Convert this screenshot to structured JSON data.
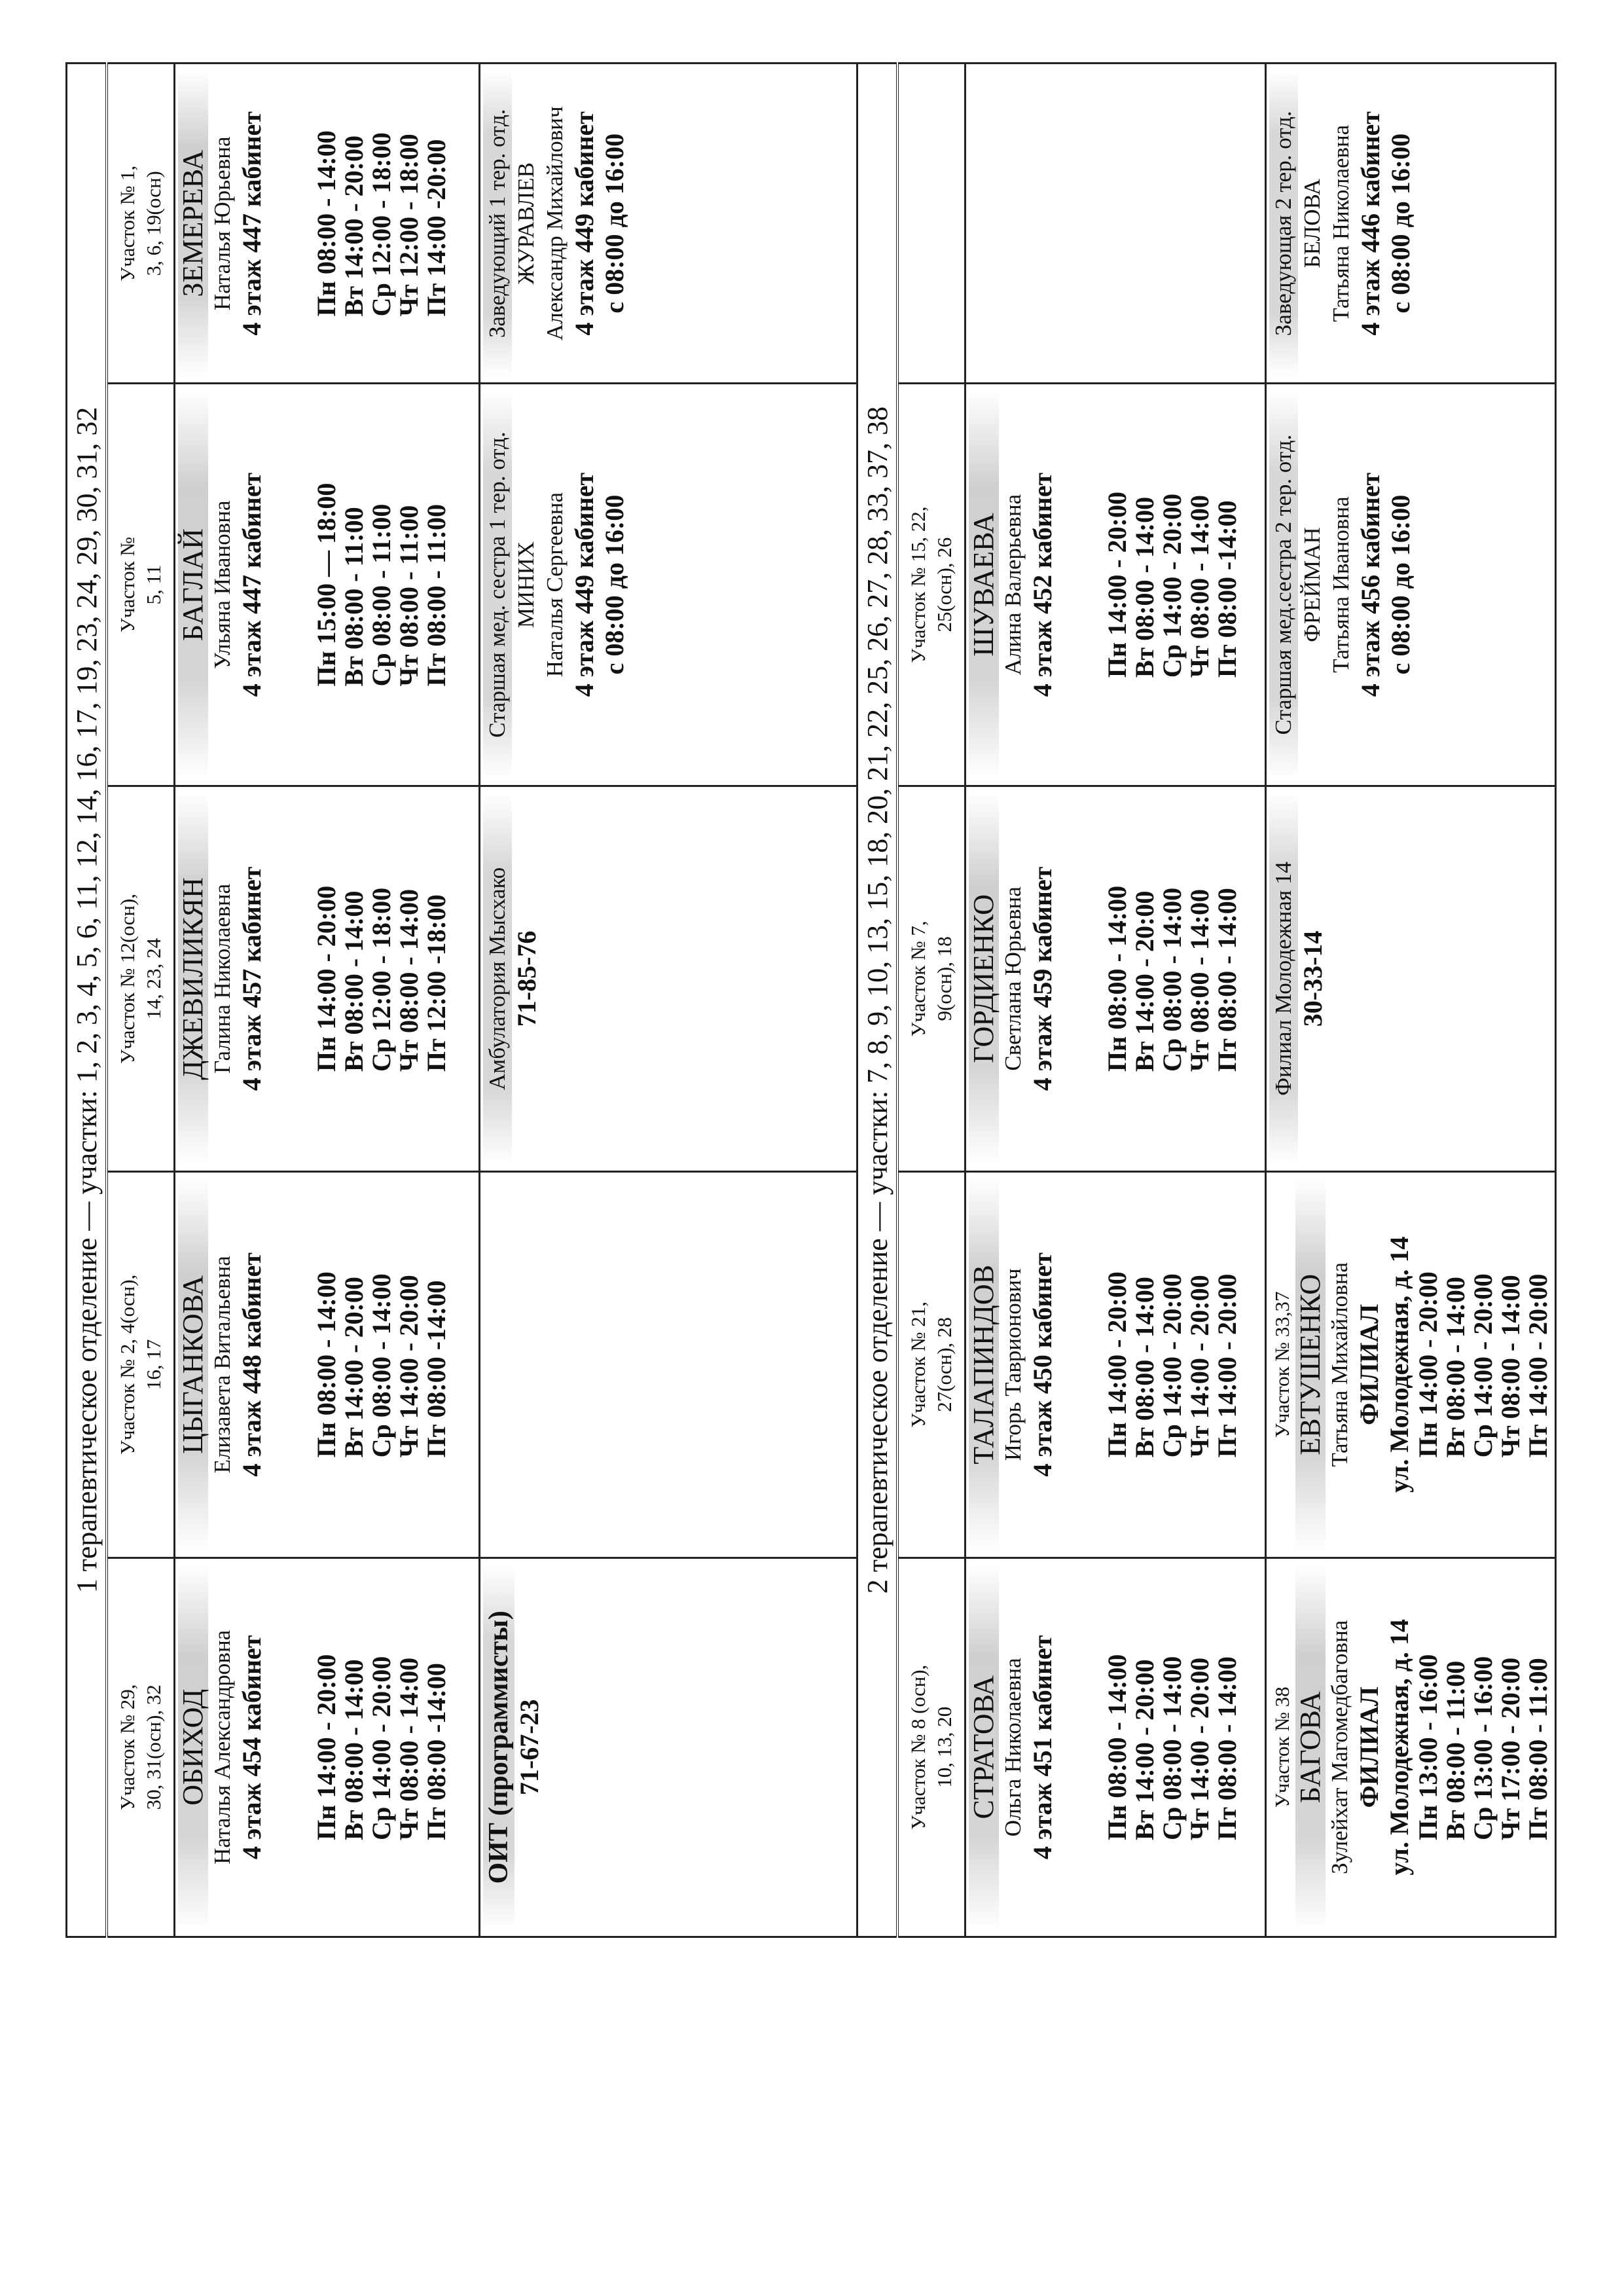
{
  "sections": [
    {
      "title": "1 терапевтическое отделение — участки: 1, 2, 3, 4, 5, 6, 11, 12, 14, 16, 17, 19, 23, 24, 29, 30, 31, 32",
      "header": [
        [
          "Участок № 29,",
          "30, 31(осн), 32"
        ],
        [
          "Участок № 2, 4(осн),",
          "16, 17"
        ],
        [
          "Участок № 12(осн),",
          "14, 23, 24"
        ],
        [
          "Участок №",
          "5, 11"
        ],
        [
          "Участок № 1,",
          "3, 6, 19(осн)"
        ]
      ],
      "rows": [
        [
          {
            "lines": [
              {
                "k": "s",
                "t": "ОБИХОД"
              },
              {
                "k": "n",
                "t": "Наталья Александровна"
              },
              {
                "k": "r",
                "t": "4 этаж 454 кабинет"
              },
              {
                "k": "gap"
              }
            ],
            "schedule": [
              "Пн 14:00 - 20:00",
              "Вт 08:00 - 14:00",
              "Ср 14:00 - 20:00",
              "Чт 08:00 - 14:00",
              "Пт 08:00 -14:00"
            ]
          },
          {
            "lines": [
              {
                "k": "s",
                "t": "ЦЫГАНКОВА"
              },
              {
                "k": "n",
                "t": "Елизавета Витальевна"
              },
              {
                "k": "r",
                "t": "4 этаж 448 кабинет"
              },
              {
                "k": "gap"
              }
            ],
            "schedule": [
              "Пн 08:00 - 14:00",
              "Вт 14:00 - 20:00",
              "Ср 08:00 - 14:00",
              "Чт 14:00 - 20:00",
              "Пт 08:00 -14:00"
            ]
          },
          {
            "lines": [
              {
                "k": "s",
                "t": "ДЖЕВИЛИКЯН"
              },
              {
                "k": "n",
                "t": "Галина Николаевна"
              },
              {
                "k": "r",
                "t": "4 этаж 457 кабинет"
              },
              {
                "k": "gap"
              }
            ],
            "schedule": [
              "Пн 14:00 - 20:00",
              "Вт 08:00 - 14:00",
              "Ср 12:00 - 18:00",
              "Чт 08:00 - 14:00",
              "Пт 12:00 -18:00"
            ]
          },
          {
            "lines": [
              {
                "k": "s",
                "t": "БАГЛАЙ"
              },
              {
                "k": "n",
                "t": "Ульяна Ивановна"
              },
              {
                "k": "r",
                "t": "4 этаж 447 кабинет"
              },
              {
                "k": "gap"
              }
            ],
            "schedule": [
              "Пн 15:00 — 18:00",
              "Вт 08:00 - 11:00",
              "Ср 08:00 - 11:00",
              "Чт 08:00 - 11:00",
              "Пт 08:00 - 11:00"
            ]
          },
          {
            "lines": [
              {
                "k": "s",
                "t": "ЗЕМЕРЕВА"
              },
              {
                "k": "n",
                "t": "Наталья Юрьевна"
              },
              {
                "k": "r",
                "t": "4 этаж 447 кабинет"
              },
              {
                "k": "gap"
              }
            ],
            "schedule": [
              "Пн 08:00 - 14:00",
              "Вт 14:00 - 20:00",
              "Ср 12:00 - 18:00",
              "Чт 12:00 - 18:00",
              "Пт 14:00 -20:00"
            ]
          }
        ],
        [
          {
            "lines": [
              {
                "k": "b big hl",
                "t": "ОИТ (программисты)"
              },
              {
                "k": "b",
                "t": "71-67-23"
              }
            ]
          },
          {
            "lines": []
          },
          {
            "lines": [
              {
                "k": "n hl",
                "t": "Амбулатория Мысхако"
              },
              {
                "k": "b",
                "t": "71-85-76"
              }
            ]
          },
          {
            "lines": [
              {
                "k": "n hl",
                "t": "Старшая мед. сестра 1 тер. отд."
              },
              {
                "k": "n",
                "t": "МИНИХ"
              },
              {
                "k": "n",
                "t": "Наталья Сергеевна"
              },
              {
                "k": "r",
                "t": "4 этаж 449 кабинет"
              },
              {
                "k": "b",
                "t": "с 08:00 до 16:00"
              }
            ]
          },
          {
            "lines": [
              {
                "k": "n hl",
                "t": "Заведующий 1 тер. отд."
              },
              {
                "k": "n",
                "t": "ЖУРАВЛЕВ"
              },
              {
                "k": "n",
                "t": "Александр Михайлович"
              },
              {
                "k": "r",
                "t": "4 этаж 449 кабинет"
              },
              {
                "k": "b",
                "t": "с 08:00 до 16:00"
              }
            ]
          }
        ]
      ]
    },
    {
      "title": "2 терапевтическое отделение — участки: 7, 8, 9, 10, 13, 15, 18, 20, 21, 22, 25, 26, 27, 28, 33, 37, 38",
      "header": [
        [
          "Участок № 8 (осн),",
          "10, 13, 20"
        ],
        [
          "Участок № 21,",
          "27(осн), 28"
        ],
        [
          "Участок  № 7,",
          "9(осн), 18"
        ],
        [
          "Участок № 15, 22,",
          "25(осн), 26"
        ],
        []
      ],
      "rows": [
        [
          {
            "lines": [
              {
                "k": "s",
                "t": "СТРАТОВА"
              },
              {
                "k": "n",
                "t": "Ольга Николаевна"
              },
              {
                "k": "r",
                "t": "4 этаж 451 кабинет"
              },
              {
                "k": "gap"
              }
            ],
            "schedule": [
              "Пн 08:00 - 14:00",
              "Вт 14:00 - 20:00",
              "Ср 08:00 - 14:00",
              "Чт 14:00 - 20:00",
              "Пт 08:00 - 14:00"
            ]
          },
          {
            "lines": [
              {
                "k": "s",
                "t": "ТАЛАПИНДОВ"
              },
              {
                "k": "n",
                "t": "Игорь Таврионович"
              },
              {
                "k": "r",
                "t": "4 этаж 450 кабинет"
              },
              {
                "k": "gap"
              }
            ],
            "schedule": [
              "Пн 14:00 - 20:00",
              "Вт 08:00 - 14:00",
              "Ср 14:00 - 20:00",
              "Чт 14:00 - 20:00",
              "Пт 14:00 - 20:00"
            ]
          },
          {
            "lines": [
              {
                "k": "s",
                "t": "ГОРДИЕНКО"
              },
              {
                "k": "n",
                "t": "Светлана Юрьевна"
              },
              {
                "k": "r",
                "t": "4 этаж 459 кабинет"
              },
              {
                "k": "gap"
              }
            ],
            "schedule": [
              "Пн 08:00 - 14:00",
              "Вт 14:00 - 20:00",
              "Ср 08:00 - 14:00",
              "Чт 08:00 - 14:00",
              "Пт 08:00 - 14:00"
            ]
          },
          {
            "lines": [
              {
                "k": "s",
                "t": "ШУВАЕВА"
              },
              {
                "k": "n",
                "t": "Алина Валерьевна"
              },
              {
                "k": "r",
                "t": "4 этаж 452 кабинет"
              },
              {
                "k": "gap"
              }
            ],
            "schedule": [
              "Пн 14:00 - 20:00",
              "Вт 08:00 - 14:00",
              "Ср 14:00 - 20:00",
              "Чт 08:00 - 14:00",
              "Пт 08:00 -14:00"
            ]
          },
          {
            "lines": []
          }
        ],
        [
          {
            "lines": [
              {
                "k": "u",
                "t": "Участок № 38"
              },
              {
                "k": "s",
                "t": "БАГОВА"
              },
              {
                "k": "n",
                "t": "Зулейхат Магомедбаговна"
              },
              {
                "k": "r",
                "t": "ФИЛИАЛ"
              },
              {
                "k": "r",
                "t": "ул.  Молодежная, д. 14"
              }
            ],
            "schedule": [
              "Пн 13:00 - 16:00",
              "Вт 08:00 - 11:00",
              "Ср 13:00 - 16:00",
              "Чт 17:00 - 20:00",
              "Пт 08:00 - 11:00"
            ]
          },
          {
            "lines": [
              {
                "k": "u",
                "t": "Участок № 33,37"
              },
              {
                "k": "s",
                "t": "ЕВТУШЕНКО"
              },
              {
                "k": "n",
                "t": "Татьяна Михайловна"
              },
              {
                "k": "r",
                "t": "ФИЛИАЛ"
              },
              {
                "k": "r",
                "t": "ул.  Молодежная, д. 14"
              }
            ],
            "schedule": [
              "Пн 14:00 - 20:00",
              "Вт 08:00 - 14:00",
              "Ср 14:00 - 20:00",
              "Чт 08:00 - 14:00",
              "Пт 14:00 - 20:00"
            ]
          },
          {
            "lines": [
              {
                "k": "n hl",
                "t": "Филиал Молодежная 14"
              },
              {
                "k": "b",
                "t": "30-33-14"
              }
            ]
          },
          {
            "lines": [
              {
                "k": "n hl",
                "t": "Старшая мед.сестра 2 тер. отд."
              },
              {
                "k": "n",
                "t": "ФРЕЙМАН"
              },
              {
                "k": "n",
                "t": "Татьяна Ивановна"
              },
              {
                "k": "r",
                "t": "4 этаж 456 кабинет"
              },
              {
                "k": "b",
                "t": "с 08:00 до 16:00"
              }
            ]
          },
          {
            "lines": [
              {
                "k": "n hl",
                "t": "Заведующая 2 тер. отд."
              },
              {
                "k": "n",
                "t": "БЕЛОВА"
              },
              {
                "k": "n",
                "t": "Татьяна Николаевна"
              },
              {
                "k": "r",
                "t": "4 этаж 446 кабинет"
              },
              {
                "k": "b",
                "t": "с 08:00 до 16:00"
              }
            ]
          }
        ]
      ]
    }
  ]
}
